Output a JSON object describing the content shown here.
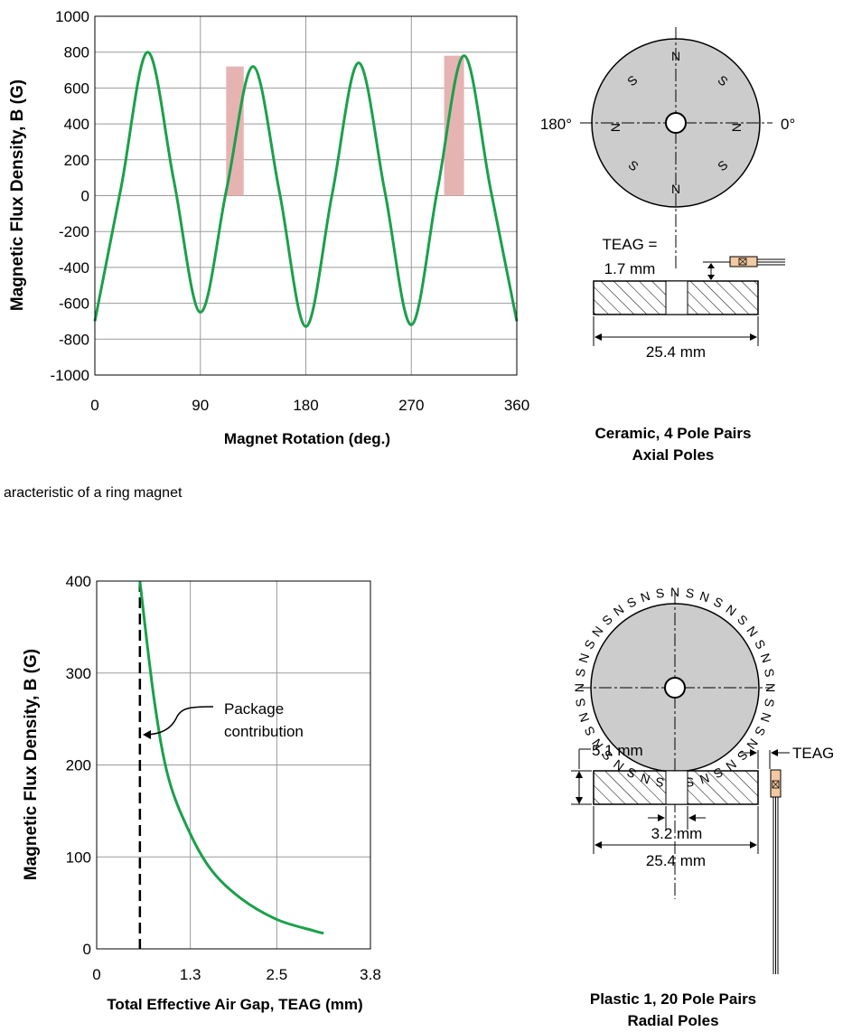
{
  "chart_data": [
    {
      "type": "line",
      "xlabel": "Magnet Rotation (deg.)",
      "ylabel": "Magnetic Flux Density, B (G)",
      "xlim": [
        0,
        360
      ],
      "ylim": [
        -1000,
        1000
      ],
      "x_ticks": [
        "0",
        "90",
        "180",
        "270",
        "360"
      ],
      "y_ticks": [
        "1000",
        "800",
        "600",
        "400",
        "200",
        "0",
        "-200",
        "-400",
        "-600",
        "-800",
        "-1000"
      ],
      "grid": true,
      "line_color": "#1aa04a",
      "highlight_color": "#e6b3b3",
      "series": [
        {
          "x": [
            0,
            22.5,
            45,
            67.5,
            90,
            112.5,
            135,
            157.5,
            180,
            202.5,
            225,
            247.5,
            270,
            292.5,
            315,
            337.5,
            360
          ],
          "values": [
            -700,
            50,
            800,
            80,
            -650,
            40,
            720,
            20,
            -730,
            10,
            740,
            20,
            -720,
            40,
            780,
            40,
            -700
          ]
        }
      ],
      "highlights": [
        {
          "x": [
            112,
            127
          ],
          "y": [
            0,
            720
          ]
        },
        {
          "x": [
            298,
            315
          ],
          "y": [
            0,
            780
          ]
        }
      ]
    },
    {
      "type": "line",
      "xlabel": "Total Effective Air Gap, TEAG (mm)",
      "ylabel": "Magnetic Flux Density, B (G)",
      "xlim": [
        0,
        3.8
      ],
      "ylim": [
        0,
        400
      ],
      "x_ticks": [
        "0",
        "1.3",
        "2.5",
        "3.8"
      ],
      "y_ticks": [
        "400",
        "300",
        "200",
        "100",
        "0"
      ],
      "grid": true,
      "line_color": "#1aa04a",
      "series": [
        {
          "x": [
            0.6,
            0.8,
            1.0,
            1.3,
            1.6,
            2.0,
            2.5,
            3.0,
            3.15
          ],
          "values": [
            400,
            270,
            185,
            125,
            85,
            55,
            32,
            20,
            17
          ]
        }
      ],
      "annotation": {
        "text1": "Package",
        "text2": "contribution",
        "x": 0.6,
        "y": 230
      }
    }
  ],
  "figures": {
    "ceramic": {
      "caption1": "Ceramic, 4 Pole Pairs",
      "caption2": "Axial Poles",
      "angle_left": "180°",
      "angle_right": "0°",
      "teag1": "TEAG =",
      "teag2": "1.7 mm",
      "width": "25.4 mm",
      "pole_n": "N",
      "pole_s": "S"
    },
    "plastic": {
      "caption1": "Plastic 1, 20 Pole Pairs",
      "caption2": "Radial Poles",
      "thickness": "5.1 mm",
      "teag": "TEAG",
      "bore": "3.2 mm",
      "width": "25.4 mm",
      "pole_n": "N",
      "pole_s": "S"
    }
  },
  "fragment_caption": "aracteristic of a ring magnet",
  "colors": {
    "grid": "#9a9a9a",
    "magnet_fill": "#cccccc",
    "sensor_fill": "#f2c9a0"
  }
}
